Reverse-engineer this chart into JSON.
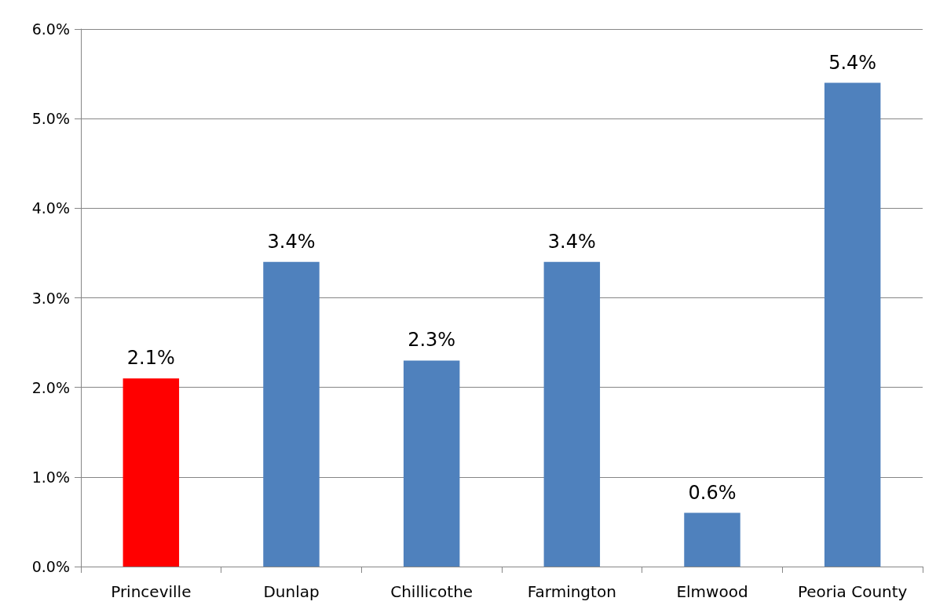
{
  "chart_data": {
    "type": "bar",
    "categories": [
      "Princeville",
      "Dunlap",
      "Chillicothe",
      "Farmington",
      "Elmwood",
      "Peoria County"
    ],
    "values": [
      2.1,
      3.4,
      2.3,
      3.4,
      0.6,
      5.4
    ],
    "colors": [
      "#ff0000",
      "#4f81bd",
      "#4f81bd",
      "#4f81bd",
      "#4f81bd",
      "#4f81bd"
    ],
    "value_labels": [
      "2.1%",
      "3.4%",
      "2.3%",
      "3.4%",
      "0.6%",
      "5.4%"
    ],
    "ylim": [
      0,
      6
    ],
    "yticks": [
      {
        "value": 0,
        "label": "0.0%"
      },
      {
        "value": 1,
        "label": "1.0%"
      },
      {
        "value": 2,
        "label": "2.0%"
      },
      {
        "value": 3,
        "label": "3.0%"
      },
      {
        "value": 4,
        "label": "4.0%"
      },
      {
        "value": 5,
        "label": "5.0%"
      },
      {
        "value": 6,
        "label": "6.0%"
      }
    ],
    "grid": "y"
  }
}
